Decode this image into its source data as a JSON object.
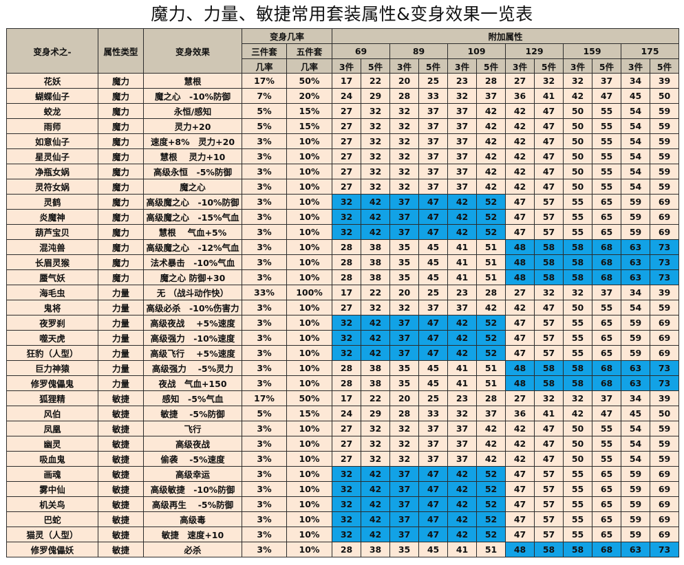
{
  "title": "魔力、力量、敏捷常用套装属性&变身效果一览表",
  "headers": {
    "name": "变身术之-",
    "attr_type": "属性类型",
    "effect": "变身效果",
    "rate_group": "变身几率",
    "three_set": "三件套",
    "five_set": "五件套",
    "rate": "几率",
    "bonus_group": "附加属性",
    "levels": [
      "69",
      "89",
      "109",
      "129",
      "159",
      "175"
    ],
    "piece3": "3件",
    "piece5": "5件"
  },
  "colors": {
    "header_bg": "#cfc6b4",
    "cell_bg": "#fde8d6",
    "highlight": "#12a2e6",
    "level_bg": "#0fa3ea"
  },
  "rows": [
    {
      "name": "花妖",
      "type": "魔力",
      "effect": "慧根",
      "r3": "17%",
      "r5": "50%",
      "vals": [
        "17",
        "22",
        "20",
        "25",
        "23",
        "28",
        "27",
        "32",
        "32",
        "37",
        "34",
        "39"
      ],
      "hl": ""
    },
    {
      "name": "蝴蝶仙子",
      "type": "魔力",
      "effect": "魔之心　-10%防御",
      "r3": "7%",
      "r5": "20%",
      "vals": [
        "24",
        "29",
        "28",
        "33",
        "32",
        "37",
        "36",
        "41",
        "42",
        "47",
        "45",
        "50"
      ],
      "hl": ""
    },
    {
      "name": "蛟龙",
      "type": "魔力",
      "effect": "永恒/感知",
      "r3": "5%",
      "r5": "15%",
      "vals": [
        "27",
        "32",
        "32",
        "37",
        "37",
        "42",
        "42",
        "47",
        "50",
        "55",
        "54",
        "59"
      ],
      "hl": ""
    },
    {
      "name": "雨师",
      "type": "魔力",
      "effect": "灵力+20",
      "r3": "5%",
      "r5": "15%",
      "vals": [
        "27",
        "32",
        "32",
        "37",
        "37",
        "42",
        "42",
        "47",
        "50",
        "55",
        "54",
        "59"
      ],
      "hl": ""
    },
    {
      "name": "如意仙子",
      "type": "魔力",
      "effect": "速度+8%　灵力+20",
      "r3": "3%",
      "r5": "10%",
      "vals": [
        "27",
        "32",
        "32",
        "37",
        "37",
        "42",
        "42",
        "47",
        "50",
        "55",
        "54",
        "59"
      ],
      "hl": ""
    },
    {
      "name": "星灵仙子",
      "type": "魔力",
      "effect": "慧根　 灵力+10",
      "r3": "3%",
      "r5": "10%",
      "vals": [
        "27",
        "32",
        "32",
        "37",
        "37",
        "42",
        "42",
        "47",
        "50",
        "55",
        "54",
        "59"
      ],
      "hl": ""
    },
    {
      "name": "净瓶女娲",
      "type": "魔力",
      "effect": "高级永恒　-5%防御",
      "r3": "3%",
      "r5": "10%",
      "vals": [
        "27",
        "32",
        "32",
        "37",
        "37",
        "42",
        "42",
        "47",
        "50",
        "55",
        "54",
        "59"
      ],
      "hl": ""
    },
    {
      "name": "灵符女娲",
      "type": "魔力",
      "effect": "魔之心",
      "r3": "3%",
      "r5": "10%",
      "vals": [
        "27",
        "32",
        "32",
        "37",
        "37",
        "42",
        "42",
        "47",
        "50",
        "55",
        "54",
        "59"
      ],
      "hl": ""
    },
    {
      "name": "灵鹤",
      "type": "魔力",
      "effect": "高级魔之心　-10%防御",
      "r3": "3%",
      "r5": "10%",
      "vals": [
        "32",
        "42",
        "37",
        "47",
        "42",
        "52",
        "47",
        "57",
        "55",
        "65",
        "59",
        "69"
      ],
      "hl": "left"
    },
    {
      "name": "炎魔神",
      "type": "魔力",
      "effect": "高级魔之心　-15%气血",
      "r3": "3%",
      "r5": "10%",
      "vals": [
        "32",
        "42",
        "37",
        "47",
        "42",
        "52",
        "47",
        "57",
        "55",
        "65",
        "59",
        "69"
      ],
      "hl": "left"
    },
    {
      "name": "葫芦宝贝",
      "type": "魔力",
      "effect": "慧根　 气血+5%",
      "r3": "3%",
      "r5": "10%",
      "vals": [
        "32",
        "42",
        "37",
        "47",
        "42",
        "52",
        "47",
        "57",
        "55",
        "65",
        "59",
        "69"
      ],
      "hl": "left"
    },
    {
      "name": "混沌兽",
      "type": "魔力",
      "effect": "高级魔之心　-12%气血",
      "r3": "3%",
      "r5": "10%",
      "vals": [
        "28",
        "38",
        "35",
        "45",
        "41",
        "51",
        "48",
        "58",
        "58",
        "68",
        "63",
        "73"
      ],
      "hl": "right"
    },
    {
      "name": "长眉灵猴",
      "type": "魔力",
      "effect": "法术暴击　-10%气血",
      "r3": "3%",
      "r5": "10%",
      "vals": [
        "28",
        "38",
        "35",
        "45",
        "41",
        "51",
        "48",
        "58",
        "58",
        "68",
        "63",
        "73"
      ],
      "hl": "right"
    },
    {
      "name": "蜃气妖",
      "type": "魔力",
      "effect": "魔之心 防御+30",
      "r3": "3%",
      "r5": "10%",
      "vals": [
        "28",
        "38",
        "35",
        "45",
        "41",
        "51",
        "48",
        "58",
        "58",
        "68",
        "63",
        "73"
      ],
      "hl": "right"
    },
    {
      "name": "海毛虫",
      "type": "力量",
      "effect": "无 （战斗动作快）",
      "r3": "33%",
      "r5": "100%",
      "vals": [
        "17",
        "22",
        "20",
        "25",
        "23",
        "28",
        "27",
        "32",
        "32",
        "37",
        "34",
        "39"
      ],
      "hl": ""
    },
    {
      "name": "鬼将",
      "type": "力量",
      "effect": "高级必杀　-10%伤害力",
      "r3": "3%",
      "r5": "10%",
      "vals": [
        "27",
        "32",
        "32",
        "37",
        "37",
        "42",
        "42",
        "47",
        "50",
        "55",
        "54",
        "59"
      ],
      "hl": ""
    },
    {
      "name": "夜罗刹",
      "type": "力量",
      "effect": "高级夜战　 +5%速度",
      "r3": "3%",
      "r5": "10%",
      "vals": [
        "32",
        "42",
        "37",
        "47",
        "42",
        "52",
        "47",
        "57",
        "55",
        "65",
        "59",
        "69"
      ],
      "hl": "left"
    },
    {
      "name": "噬天虎",
      "type": "力量",
      "effect": "高级强力　-10%速度",
      "r3": "3%",
      "r5": "10%",
      "vals": [
        "32",
        "42",
        "37",
        "47",
        "42",
        "52",
        "47",
        "57",
        "55",
        "65",
        "59",
        "69"
      ],
      "hl": "left"
    },
    {
      "name": "狂豹（人型）",
      "type": "力量",
      "effect": "高级飞行　 +5%速度",
      "r3": "3%",
      "r5": "10%",
      "vals": [
        "32",
        "42",
        "37",
        "47",
        "42",
        "52",
        "47",
        "57",
        "55",
        "65",
        "59",
        "69"
      ],
      "hl": "left"
    },
    {
      "name": "巨力神猿",
      "type": "力量",
      "effect": "高级强力　 -5%灵力",
      "r3": "3%",
      "r5": "10%",
      "vals": [
        "28",
        "38",
        "35",
        "45",
        "41",
        "51",
        "48",
        "58",
        "58",
        "68",
        "63",
        "73"
      ],
      "hl": "right"
    },
    {
      "name": "修罗傀儡鬼",
      "type": "力量",
      "effect": "夜战　气血+150",
      "r3": "3%",
      "r5": "10%",
      "vals": [
        "28",
        "38",
        "35",
        "45",
        "41",
        "51",
        "48",
        "58",
        "58",
        "68",
        "63",
        "73"
      ],
      "hl": "right"
    },
    {
      "name": "狐狸精",
      "type": "敏捷",
      "effect": "感知　-5%气血",
      "r3": "17%",
      "r5": "50%",
      "vals": [
        "17",
        "22",
        "20",
        "25",
        "23",
        "28",
        "27",
        "32",
        "32",
        "37",
        "34",
        "39"
      ],
      "hl": ""
    },
    {
      "name": "风伯",
      "type": "敏捷",
      "effect": "敏捷　 -5%防御",
      "r3": "5%",
      "r5": "15%",
      "vals": [
        "24",
        "29",
        "28",
        "33",
        "32",
        "37",
        "36",
        "41",
        "42",
        "47",
        "45",
        "50"
      ],
      "hl": ""
    },
    {
      "name": "凤凰",
      "type": "敏捷",
      "effect": "飞行",
      "r3": "3%",
      "r5": "10%",
      "vals": [
        "27",
        "32",
        "32",
        "37",
        "37",
        "42",
        "42",
        "47",
        "50",
        "55",
        "54",
        "59"
      ],
      "hl": ""
    },
    {
      "name": "幽灵",
      "type": "敏捷",
      "effect": "高级夜战",
      "r3": "3%",
      "r5": "10%",
      "vals": [
        "27",
        "32",
        "32",
        "37",
        "37",
        "42",
        "42",
        "47",
        "50",
        "55",
        "54",
        "59"
      ],
      "hl": ""
    },
    {
      "name": "吸血鬼",
      "type": "敏捷",
      "effect": "偷袭　 -5%速度",
      "r3": "3%",
      "r5": "10%",
      "vals": [
        "27",
        "32",
        "32",
        "37",
        "37",
        "42",
        "42",
        "47",
        "50",
        "55",
        "54",
        "59"
      ],
      "hl": ""
    },
    {
      "name": "画魂",
      "type": "敏捷",
      "effect": "高级幸运",
      "r3": "3%",
      "r5": "10%",
      "vals": [
        "32",
        "42",
        "37",
        "47",
        "42",
        "52",
        "47",
        "57",
        "55",
        "65",
        "59",
        "69"
      ],
      "hl": "left"
    },
    {
      "name": "雾中仙",
      "type": "敏捷",
      "effect": "高级敏捷　-10%防御",
      "r3": "3%",
      "r5": "10%",
      "vals": [
        "32",
        "42",
        "37",
        "47",
        "42",
        "52",
        "47",
        "57",
        "55",
        "65",
        "59",
        "69"
      ],
      "hl": "left"
    },
    {
      "name": "机关鸟",
      "type": "敏捷",
      "effect": "高级再生　 -5%防御",
      "r3": "3%",
      "r5": "10%",
      "vals": [
        "32",
        "42",
        "37",
        "47",
        "42",
        "52",
        "47",
        "57",
        "55",
        "65",
        "59",
        "69"
      ],
      "hl": "left"
    },
    {
      "name": "巴蛇",
      "type": "敏捷",
      "effect": "高级毒",
      "r3": "3%",
      "r5": "10%",
      "vals": [
        "32",
        "42",
        "37",
        "47",
        "42",
        "52",
        "47",
        "57",
        "55",
        "65",
        "59",
        "69"
      ],
      "hl": "left"
    },
    {
      "name": "猫灵（人型）",
      "type": "敏捷",
      "effect": "敏捷　速度+10",
      "r3": "3%",
      "r5": "10%",
      "vals": [
        "32",
        "42",
        "37",
        "47",
        "42",
        "52",
        "47",
        "57",
        "55",
        "65",
        "59",
        "69"
      ],
      "hl": "left"
    },
    {
      "name": "修罗傀儡妖",
      "type": "敏捷",
      "effect": "必杀",
      "r3": "3%",
      "r5": "10%",
      "vals": [
        "28",
        "38",
        "35",
        "45",
        "41",
        "51",
        "48",
        "58",
        "58",
        "68",
        "63",
        "73"
      ],
      "hl": "right"
    }
  ]
}
